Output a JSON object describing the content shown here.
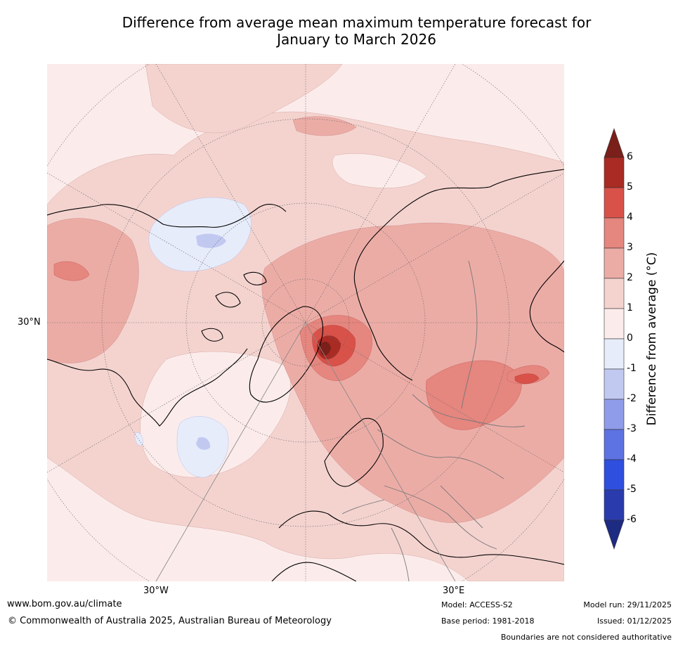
{
  "title": {
    "line1": "Difference from average mean maximum temperature forecast for",
    "line2": "January to March 2026"
  },
  "map": {
    "projection": "north-polar-stereographic",
    "labels": {
      "lat_30n": "30°N",
      "lon_30w": "30°W",
      "lon_30e": "30°E"
    },
    "colors": {
      "background": "#fbeceb",
      "warm1": "#f4d3cf",
      "warm2": "#ecaca6",
      "warm3": "#e5867f",
      "warm4": "#d9524a",
      "warm5": "#a92b24",
      "warm6": "#7a1f19",
      "cool1": "#e7ecfb",
      "cool2": "#c2c9f1"
    }
  },
  "colorbar": {
    "title": "Difference from average (°C)",
    "ticks": [
      "6",
      "5",
      "4",
      "3",
      "2",
      "1",
      "0",
      "-1",
      "-2",
      "-3",
      "-4",
      "-5",
      "-6"
    ],
    "bins": [
      {
        "from": 6,
        "to": 7,
        "color": "#7a1f19"
      },
      {
        "from": 5,
        "to": 6,
        "color": "#a92b24"
      },
      {
        "from": 4,
        "to": 5,
        "color": "#d9524a"
      },
      {
        "from": 3,
        "to": 4,
        "color": "#e5867f"
      },
      {
        "from": 2,
        "to": 3,
        "color": "#ecaca6"
      },
      {
        "from": 1,
        "to": 2,
        "color": "#f4d3cf"
      },
      {
        "from": 0,
        "to": 1,
        "color": "#fbeceb"
      },
      {
        "from": -1,
        "to": 0,
        "color": "#e7ecfb"
      },
      {
        "from": -2,
        "to": -1,
        "color": "#c2c9f1"
      },
      {
        "from": -3,
        "to": -2,
        "color": "#8f9cea"
      },
      {
        "from": -4,
        "to": -3,
        "color": "#5d72e3"
      },
      {
        "from": -5,
        "to": -4,
        "color": "#2f4fdf"
      },
      {
        "from": -6,
        "to": -5,
        "color": "#2a3cad"
      },
      {
        "from": -7,
        "to": -6,
        "color": "#1d2b82"
      }
    ]
  },
  "footer": {
    "url": "www.bom.gov.au/climate",
    "copyright": "© Commonwealth of Australia 2025, Australian Bureau of Meteorology",
    "model": "Model: ACCESS-S2",
    "base_period": "Base period: 1981-2018",
    "model_run": "Model run: 29/11/2025",
    "issued": "Issued: 01/12/2025",
    "disclaimer": "Boundaries are not considered authoritative"
  }
}
